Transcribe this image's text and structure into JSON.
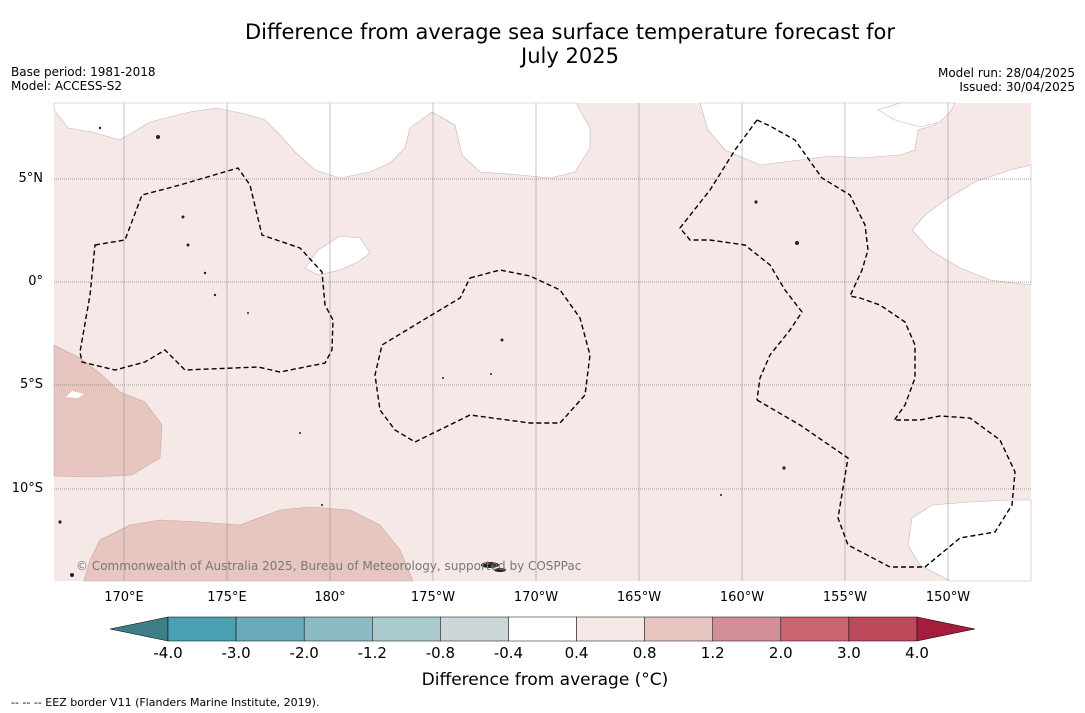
{
  "title_line1": "Difference from average sea surface temperature forecast for",
  "title_line2": "July 2025",
  "base_period": "Base period: 1981-2018",
  "model": "Model: ACCESS-S2",
  "model_run": "Model run: 28/04/2025",
  "issued": "Issued: 30/04/2025",
  "lat_labels": [
    "5°N",
    "0°",
    "5°S",
    "10°S"
  ],
  "lon_labels": [
    "170°E",
    "175°E",
    "180°",
    "175°W",
    "170°W",
    "165°W",
    "160°W",
    "155°W",
    "150°W"
  ],
  "copyright": "© Commonwealth of Australia 2025, Bureau of Meteorology, supported by COSPPac",
  "colorbar": {
    "ticks": [
      "-4.0",
      "-3.0",
      "-2.0",
      "-1.2",
      "-0.8",
      "-0.4",
      "0.4",
      "0.8",
      "1.2",
      "2.0",
      "3.0",
      "4.0"
    ],
    "colors": [
      "#4a9fb0",
      "#6aaab9",
      "#8bb9c4",
      "#a9c9cd",
      "#cdd6d8",
      "#ffffff",
      "#f5e8e6",
      "#e8c6c0",
      "#d48e95",
      "#c96570",
      "#bd4a5a"
    ],
    "under_color": "#3e7e86",
    "over_color": "#a61c3c",
    "label": "Difference from average (°C)"
  },
  "eez_legend": "-- -- -- EEZ border V11 (Flanders Marine Institute, 2019)."
}
